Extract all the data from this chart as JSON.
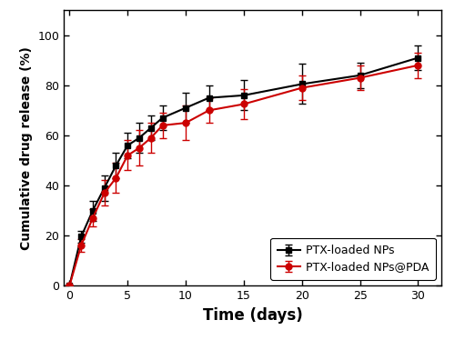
{
  "time_points": [
    0,
    1,
    2,
    3,
    4,
    5,
    6,
    7,
    8,
    10,
    12,
    15,
    20,
    25,
    30
  ],
  "black_values": [
    0,
    19.5,
    30,
    39,
    48,
    56,
    59,
    63,
    67,
    71,
    75,
    76,
    80.5,
    84,
    91
  ],
  "black_errors": [
    0,
    2.5,
    4,
    5,
    5,
    5,
    6,
    5,
    5,
    6,
    5,
    6,
    8,
    5,
    5
  ],
  "red_values": [
    0,
    16,
    27,
    37,
    43,
    52,
    55,
    59,
    64,
    65,
    70,
    72.5,
    79,
    83,
    88
  ],
  "red_errors": [
    0,
    2.5,
    3.5,
    5,
    6,
    6,
    7,
    6,
    5,
    7,
    5,
    6,
    5,
    5,
    5
  ],
  "xlabel": "Time (days)",
  "ylabel": "Cumulative drug release (%)",
  "xlim": [
    -0.5,
    32
  ],
  "ylim": [
    0,
    110
  ],
  "xticks": [
    0,
    5,
    10,
    15,
    20,
    25,
    30
  ],
  "yticks": [
    0,
    20,
    40,
    60,
    80,
    100
  ],
  "black_label": "PTX-loaded NPs",
  "red_label": "PTX-loaded NPs@PDA",
  "black_color": "#000000",
  "red_color": "#cc0000",
  "marker_black": "s",
  "marker_red": "o",
  "linewidth": 1.5,
  "markersize": 5,
  "capsize": 3,
  "elinewidth": 1.0,
  "figure_width": 5.0,
  "figure_height": 3.74,
  "dpi": 100
}
